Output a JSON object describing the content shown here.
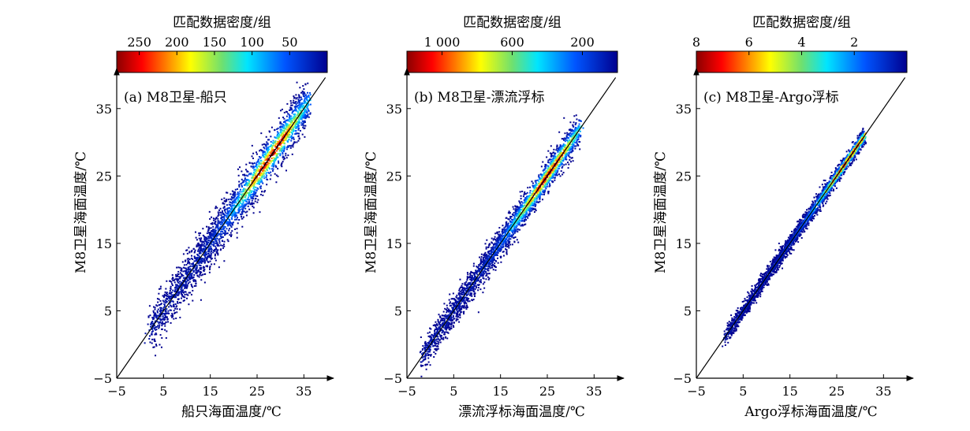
{
  "chart_data": [
    {
      "type": "scatter",
      "panel_label": "(a) M8卫星-船只",
      "xlabel": "船只海面温度/℃",
      "ylabel": "M8卫星海面温度/℃",
      "xlim": [
        -5,
        40
      ],
      "ylim": [
        -5,
        40
      ],
      "x_ticks": [
        -5,
        5,
        15,
        25,
        35
      ],
      "y_ticks": [
        -5,
        5,
        15,
        25,
        35
      ],
      "colorbar": {
        "title": "匹配数据密度/组",
        "tick_labels": [
          "250",
          "200",
          "150",
          "100",
          "50"
        ],
        "ticks": [
          250,
          200,
          150,
          100,
          50
        ],
        "range": [
          280,
          0
        ]
      },
      "reference_line": "1:1",
      "x_range_data": [
        2,
        36
      ],
      "points_spread": 1.6,
      "density_peak_x": 28
    },
    {
      "type": "scatter",
      "panel_label": "(b) M8卫星-漂流浮标",
      "xlabel": "漂流浮标海面温度/℃",
      "ylabel": "M8卫星海面温度/℃",
      "xlim": [
        -5,
        40
      ],
      "ylim": [
        -5,
        40
      ],
      "x_ticks": [
        -5,
        5,
        15,
        25,
        35
      ],
      "y_ticks": [
        -5,
        5,
        15,
        25,
        35
      ],
      "colorbar": {
        "title": "匹配数据密度/组",
        "tick_labels": [
          "1 000",
          "600",
          "200"
        ],
        "ticks": [
          1000,
          600,
          200
        ],
        "range": [
          1200,
          0
        ]
      },
      "reference_line": "1:1",
      "x_range_data": [
        -2,
        32
      ],
      "points_spread": 1.1,
      "density_peak_x": 25
    },
    {
      "type": "scatter",
      "panel_label": "(c) M8卫星-Argo浮标",
      "xlabel": "Argo浮标海面温度/℃",
      "ylabel": "M8卫星海面温度/℃",
      "xlim": [
        -5,
        40
      ],
      "ylim": [
        -5,
        40
      ],
      "x_ticks": [
        -5,
        5,
        15,
        25,
        35
      ],
      "y_ticks": [
        -5,
        5,
        15,
        25,
        35
      ],
      "colorbar": {
        "title": "匹配数据密度/组",
        "tick_labels": [
          "8",
          "6",
          "4",
          "2"
        ],
        "ticks": [
          8,
          6,
          4,
          2
        ],
        "range": [
          8,
          0
        ]
      },
      "reference_line": "1:1",
      "x_range_data": [
        1,
        31
      ],
      "points_spread": 0.6,
      "density_peak_x": 28
    }
  ]
}
